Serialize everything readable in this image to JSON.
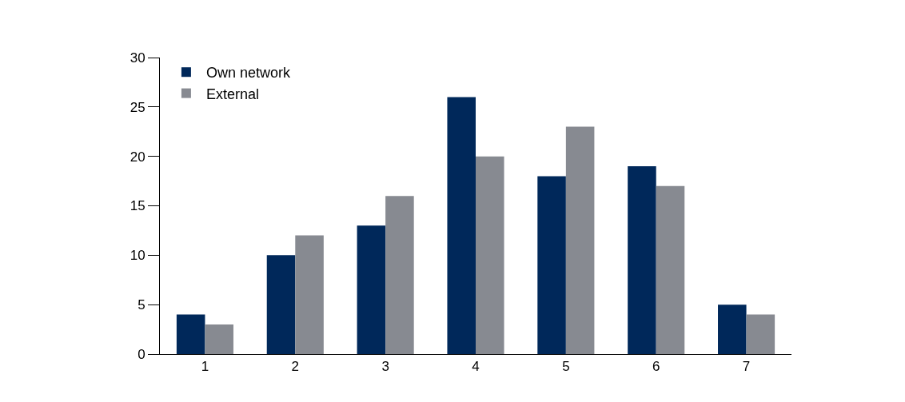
{
  "chart_data": {
    "type": "bar",
    "categories": [
      "1",
      "2",
      "3",
      "4",
      "5",
      "6",
      "7"
    ],
    "series": [
      {
        "name": "Own network",
        "color": "#00285a",
        "values": [
          4,
          10,
          13,
          26,
          18,
          19,
          5
        ]
      },
      {
        "name": "External",
        "color": "#878a91",
        "values": [
          3,
          12,
          16,
          20,
          23,
          17,
          4
        ]
      }
    ],
    "ylim": [
      0,
      30
    ],
    "yticks": [
      0,
      5,
      10,
      15,
      20,
      25,
      30
    ],
    "legend": "top left"
  }
}
